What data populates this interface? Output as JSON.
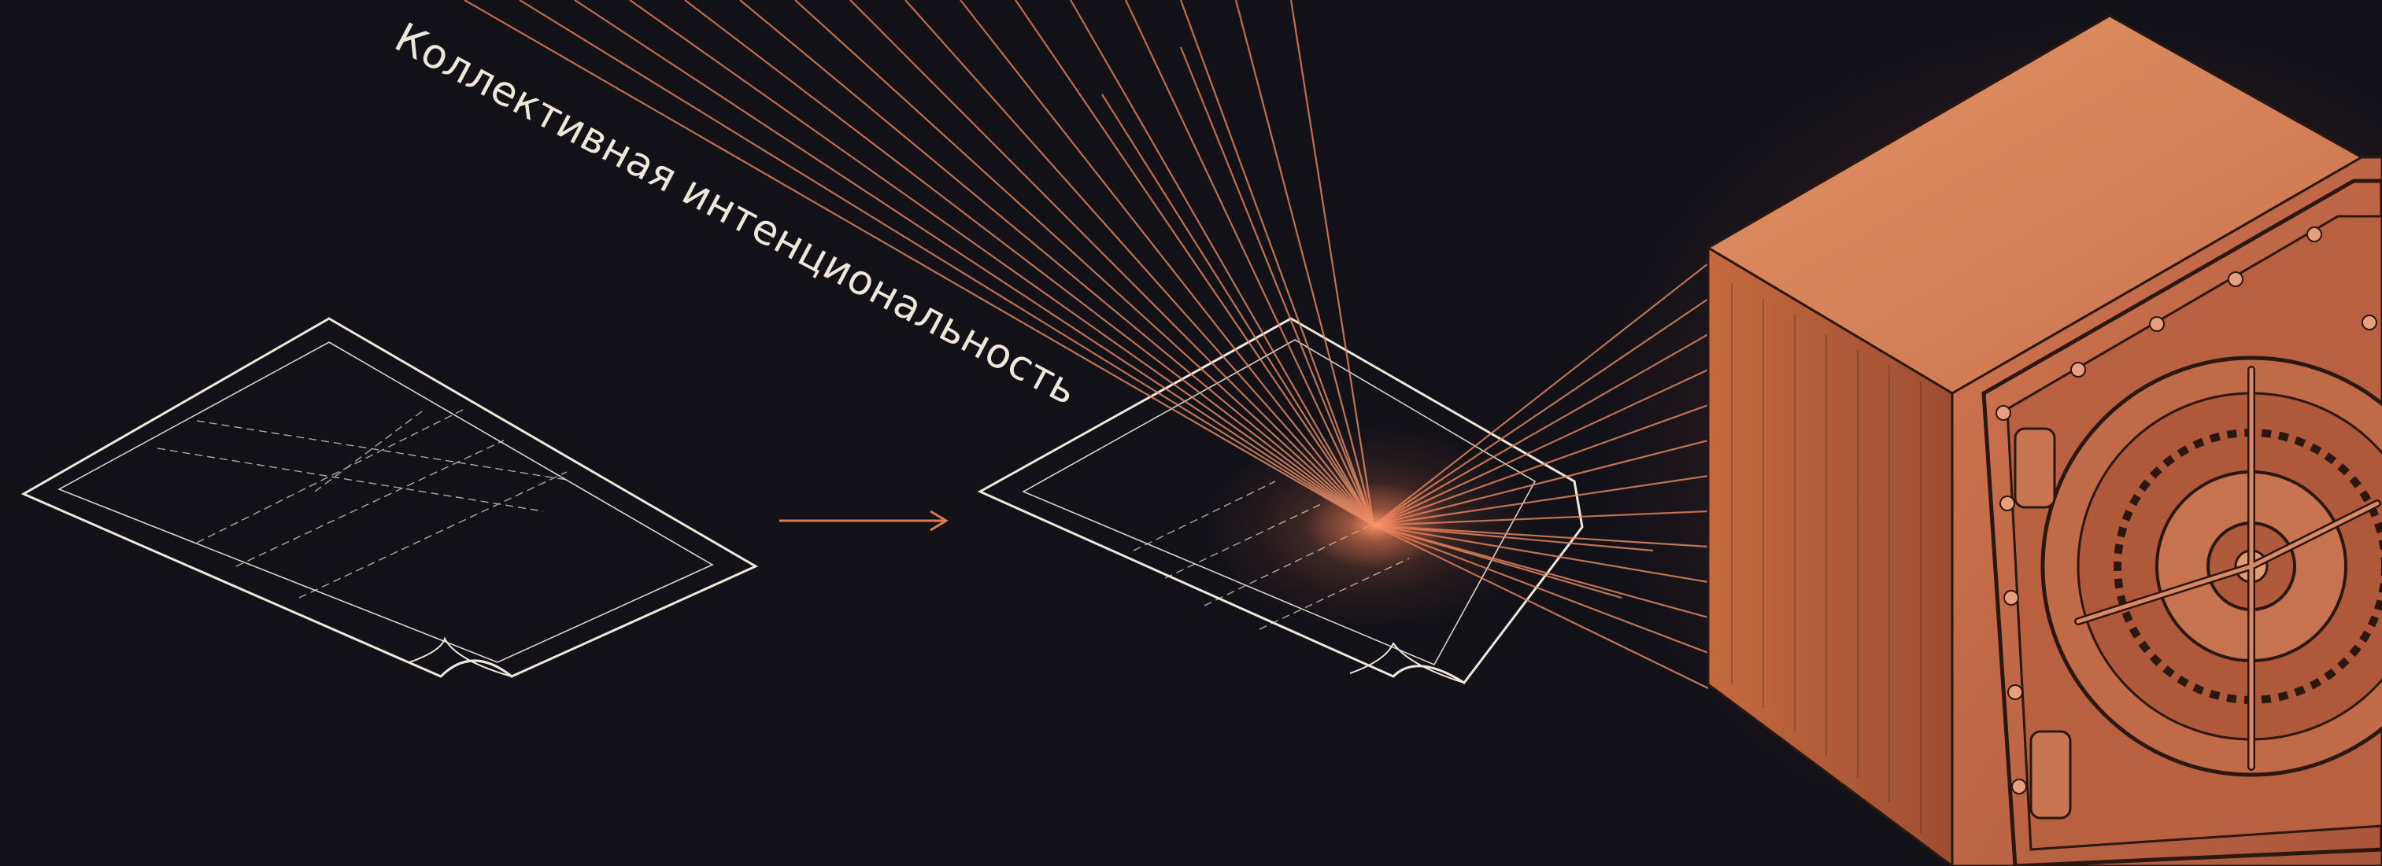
{
  "caption": "Коллективная интенциональность",
  "colors": {
    "background": "#121118",
    "paper_line": "#efe7da",
    "beam": "#e07a52",
    "arrow": "#e07a52",
    "safe_front": "#c56a45",
    "safe_side": "#b85c39",
    "safe_top": "#d98559"
  },
  "illustration": {
    "left_sheet": "blank-form-icon",
    "arrow": "arrow-right-icon",
    "right_sheet": "filled-form-icon",
    "beams": "light-beams",
    "vault": "vault-safe-icon"
  }
}
